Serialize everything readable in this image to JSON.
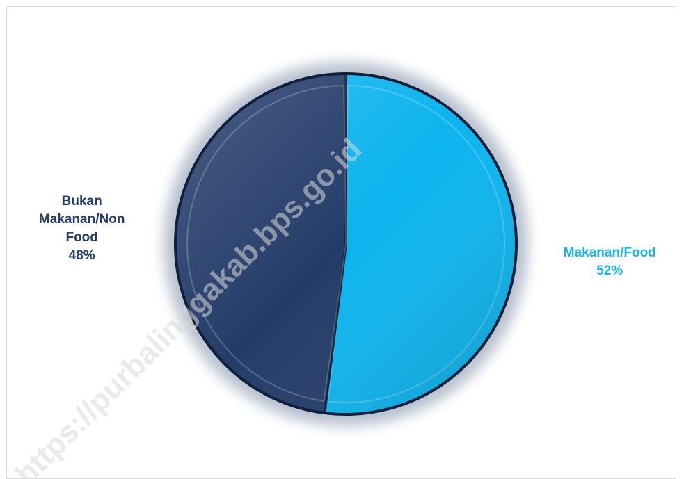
{
  "chart_data": {
    "type": "pie",
    "categories": [
      "Makanan/Food",
      "Bukan Makanan/Non Food"
    ],
    "values": [
      52,
      48
    ],
    "labels": [
      {
        "lines": [
          "Makanan/Food",
          "52%"
        ]
      },
      {
        "lines": [
          "Bukan",
          "Makanan/Non",
          "Food",
          "48%"
        ]
      }
    ],
    "colors": [
      "#0db4ee",
      "#243c69"
    ],
    "label_colors": [
      "#19b4ec",
      "#243c69"
    ],
    "start_angle_deg": 0,
    "direction": "clockwise",
    "legend": "none"
  },
  "watermark": "https://purbalinggakab.bps.go.id"
}
